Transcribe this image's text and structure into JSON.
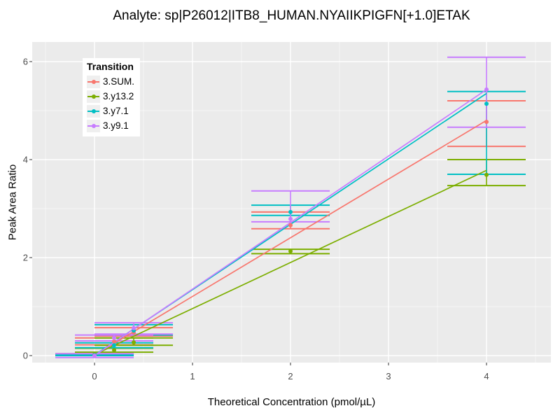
{
  "chart_data": {
    "type": "scatter",
    "title": "Analyte: sp|P26012|ITB8_HUMAN.NYAIIKPIGFN[+1.0]ETAK",
    "xlabel": "Theoretical Concentration (pmol/µL)",
    "ylabel": "Peak Area Ratio",
    "legend_title": "Transition",
    "legend_position": "top-left-inside",
    "grid": true,
    "panel_bg": "#EBEBEB",
    "grid_color": "#FFFFFF",
    "tick_label_color": "#4D4D4D",
    "xlim": [
      -0.636,
      4.657
    ],
    "ylim": [
      -0.143,
      6.4
    ],
    "x_ticks": [
      0,
      1,
      2,
      3,
      4
    ],
    "y_ticks": [
      0,
      2,
      4,
      6
    ],
    "x_minor": [
      -0.5,
      0.5,
      1.5,
      2.5,
      3.5,
      4.5
    ],
    "y_minor": [
      1,
      3,
      5
    ],
    "x": [
      0,
      0.2,
      0.4,
      2,
      4
    ],
    "error_cap_halfwidth": 0.4,
    "series": [
      {
        "name": "3.SUM.",
        "color": "#F8766D",
        "points": [
          0.01,
          0.29,
          0.47,
          2.66,
          4.77
        ],
        "err_low": [
          0.0,
          0.22,
          0.4,
          2.59,
          4.27
        ],
        "err_high": [
          0.02,
          0.36,
          0.57,
          2.93,
          5.2
        ],
        "line_start": 0.01,
        "line_end": 4.8
      },
      {
        "name": "3.y13.2",
        "color": "#7CAE00",
        "points": [
          0.02,
          0.11,
          0.27,
          2.13,
          3.69
        ],
        "err_low": [
          0.0,
          0.07,
          0.21,
          2.08,
          3.47
        ],
        "err_high": [
          0.04,
          0.15,
          0.36,
          2.17,
          4.0
        ],
        "line_start": 0.02,
        "line_end": 3.78
      },
      {
        "name": "3.y7.1",
        "color": "#00BFC4",
        "points": [
          0.01,
          0.21,
          0.51,
          2.93,
          5.14
        ],
        "err_low": [
          0.0,
          0.16,
          0.42,
          2.86,
          3.7
        ],
        "err_high": [
          0.02,
          0.26,
          0.63,
          3.07,
          5.39
        ],
        "line_start": 0.01,
        "line_end": 5.35
      },
      {
        "name": "3.y9.1",
        "color": "#C77CFF",
        "points": [
          0.0,
          0.36,
          0.56,
          2.79,
          5.43
        ],
        "err_low": [
          -0.04,
          0.3,
          0.44,
          2.73,
          4.66
        ],
        "err_high": [
          0.04,
          0.42,
          0.67,
          3.36,
          6.09
        ],
        "line_start": 0.0,
        "line_end": 5.43
      }
    ]
  }
}
